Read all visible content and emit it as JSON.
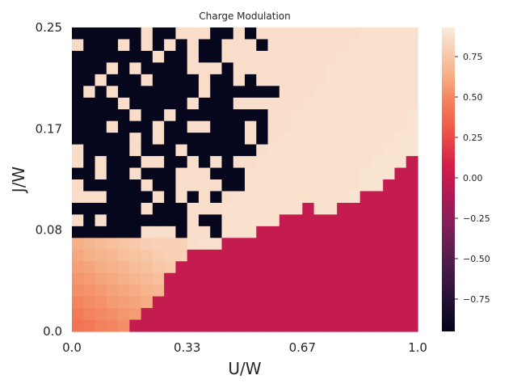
{
  "chart_data": {
    "type": "heatmap",
    "title": "Charge Modulation",
    "xlabel": "U/W",
    "ylabel": "J/W",
    "x_ticks": [
      "0.0",
      "0.33",
      "0.67",
      "1.0"
    ],
    "y_ticks": [
      "0.0",
      "0.08",
      "0.17",
      "0.25"
    ],
    "xlim": [
      0,
      1
    ],
    "ylim": [
      0,
      0.25
    ],
    "colorbar": {
      "range": [
        -0.95,
        0.93
      ],
      "ticks": [
        -0.75,
        -0.5,
        -0.25,
        0.0,
        0.25,
        0.5,
        0.75
      ],
      "tick_labels": [
        "−0.75",
        "−0.50",
        "−0.25",
        "0.00",
        "0.25",
        "0.50",
        "0.75"
      ],
      "colormap": "rocket"
    },
    "grid": false,
    "regions": {
      "high_modulation_value": 0.9,
      "no_modulation_value": 0.0,
      "dark_speckle_value": -0.93,
      "orange_crossover": "low U, low J near origin, values rising 0.45 to 0.75"
    },
    "n_cols": 30,
    "n_rows": 26,
    "values": []
  }
}
